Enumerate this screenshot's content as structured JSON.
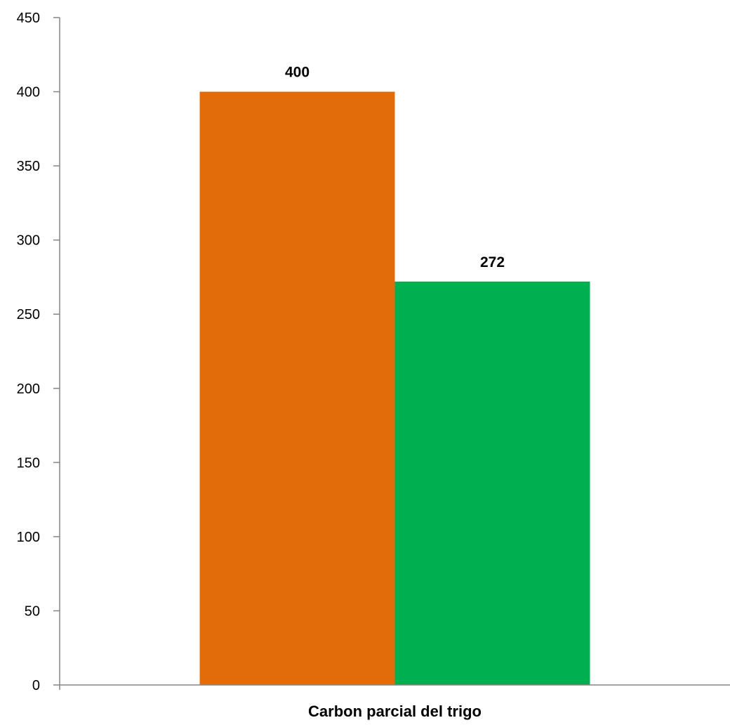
{
  "chart_data": {
    "type": "bar",
    "categories": [
      "Carbon parcial del trigo"
    ],
    "series": [
      {
        "values": [
          400
        ],
        "color": "#E36C0A"
      },
      {
        "values": [
          272
        ],
        "color": "#00B050"
      }
    ],
    "data_labels": [
      "400",
      "272"
    ],
    "title": "",
    "xlabel": "",
    "ylabel": "",
    "ylim": [
      0,
      450
    ],
    "y_ticks": [
      0,
      50,
      100,
      150,
      200,
      250,
      300,
      350,
      400,
      450
    ],
    "grid": false,
    "legend": "none",
    "axis_color": "#868686"
  }
}
